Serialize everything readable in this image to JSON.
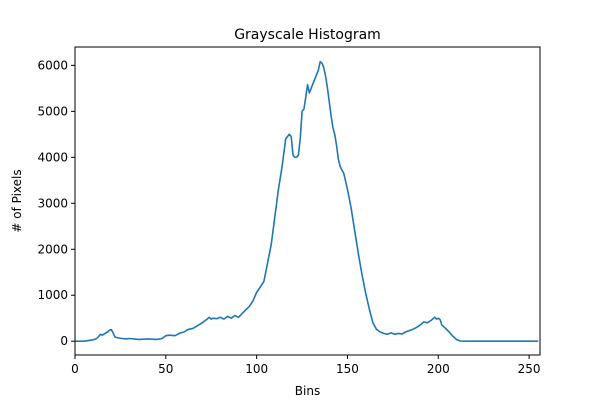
{
  "chart_data": {
    "type": "line",
    "title": "Grayscale Histogram",
    "xlabel": "Bins",
    "ylabel": "# of Pixels",
    "xlim": [
      0,
      256
    ],
    "ylim": [
      -300,
      6400
    ],
    "xticks": [
      0,
      50,
      100,
      150,
      200,
      250
    ],
    "yticks": [
      0,
      1000,
      2000,
      3000,
      4000,
      5000,
      6000
    ],
    "grid": false,
    "series": [
      {
        "color": "#1f77b4",
        "x": [
          0,
          5,
          10,
          12,
          13,
          14,
          15,
          17,
          18,
          19,
          20,
          21,
          22,
          24,
          26,
          28,
          30,
          35,
          40,
          45,
          48,
          50,
          52,
          55,
          58,
          60,
          62,
          65,
          68,
          70,
          72,
          74,
          75,
          76,
          78,
          80,
          82,
          84,
          86,
          88,
          90,
          92,
          94,
          96,
          98,
          100,
          102,
          104,
          106,
          108,
          110,
          112,
          114,
          116,
          117,
          118,
          119,
          120,
          121,
          122,
          123,
          124,
          125,
          126,
          127,
          128,
          129,
          130,
          131,
          132,
          133,
          134,
          135,
          136,
          137,
          138,
          139,
          140,
          141,
          142,
          143,
          144,
          145,
          146,
          147,
          148,
          150,
          152,
          154,
          156,
          158,
          160,
          162,
          164,
          166,
          168,
          170,
          172,
          174,
          176,
          178,
          180,
          182,
          184,
          186,
          188,
          190,
          192,
          194,
          196,
          198,
          199,
          200,
          201,
          202,
          204,
          206,
          208,
          210,
          212,
          215,
          220,
          230,
          240,
          250,
          255
        ],
        "values": [
          0,
          0,
          30,
          60,
          100,
          150,
          130,
          180,
          200,
          240,
          250,
          180,
          90,
          70,
          60,
          50,
          60,
          40,
          50,
          40,
          60,
          120,
          130,
          120,
          180,
          200,
          250,
          280,
          350,
          400,
          460,
          520,
          480,
          500,
          490,
          520,
          480,
          540,
          500,
          560,
          520,
          600,
          680,
          760,
          880,
          1060,
          1180,
          1300,
          1700,
          2100,
          2700,
          3300,
          3800,
          4400,
          4450,
          4500,
          4450,
          4050,
          4000,
          4000,
          4050,
          4400,
          5000,
          5050,
          5300,
          5580,
          5400,
          5500,
          5600,
          5700,
          5800,
          5900,
          6080,
          6050,
          5950,
          5750,
          5500,
          5200,
          4900,
          4650,
          4500,
          4250,
          3950,
          3800,
          3720,
          3650,
          3300,
          2900,
          2400,
          1900,
          1450,
          1050,
          700,
          400,
          260,
          200,
          170,
          150,
          180,
          150,
          170,
          160,
          200,
          230,
          260,
          300,
          350,
          420,
          400,
          450,
          520,
          480,
          500,
          470,
          350,
          280,
          200,
          110,
          40,
          5,
          0,
          0,
          0,
          0,
          0,
          0
        ]
      }
    ]
  }
}
